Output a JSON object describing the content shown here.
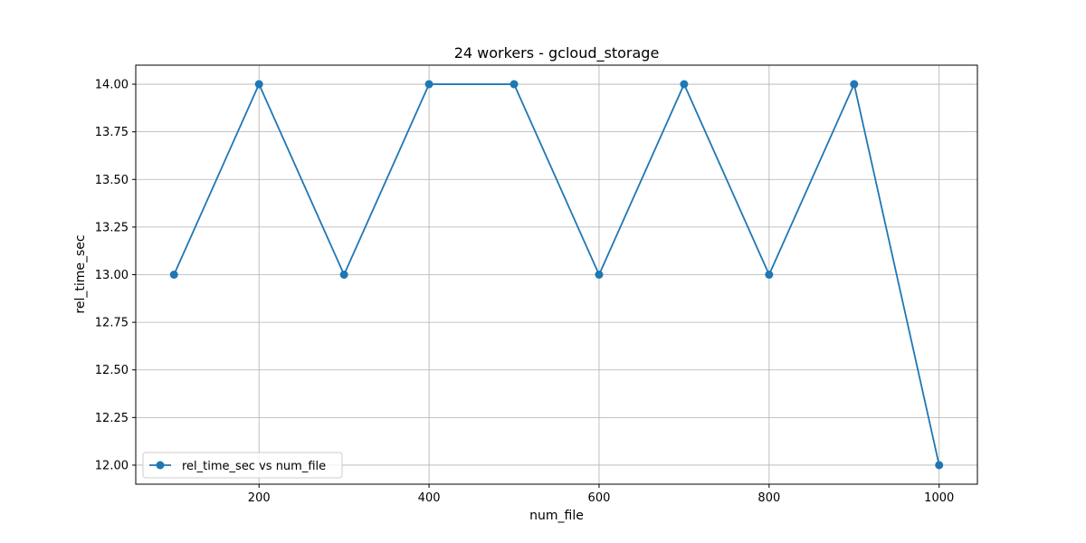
{
  "chart_data": {
    "type": "line",
    "title": "24 workers - gcloud_storage",
    "xlabel": "num_file",
    "ylabel": "rel_time_sec",
    "x": [
      100,
      200,
      300,
      400,
      500,
      600,
      700,
      800,
      900,
      1000
    ],
    "series": [
      {
        "name": "rel_time_sec vs num_file",
        "values": [
          13,
          14,
          13,
          14,
          14,
          13,
          14,
          13,
          14,
          12
        ],
        "color": "#1f77b4",
        "marker": "circle"
      }
    ],
    "xlim": [
      55,
      1045
    ],
    "ylim": [
      11.9,
      14.1
    ],
    "xticks": [
      200,
      400,
      600,
      800,
      1000
    ],
    "xtick_labels": [
      "200",
      "400",
      "600",
      "800",
      "1000"
    ],
    "yticks": [
      12.0,
      12.25,
      12.5,
      12.75,
      13.0,
      13.25,
      13.5,
      13.75,
      14.0
    ],
    "ytick_labels": [
      "12.00",
      "12.25",
      "12.50",
      "12.75",
      "13.00",
      "13.25",
      "13.50",
      "13.75",
      "14.00"
    ],
    "grid": true,
    "legend_position": "lower-left",
    "grid_color": "#b0b0b0"
  }
}
